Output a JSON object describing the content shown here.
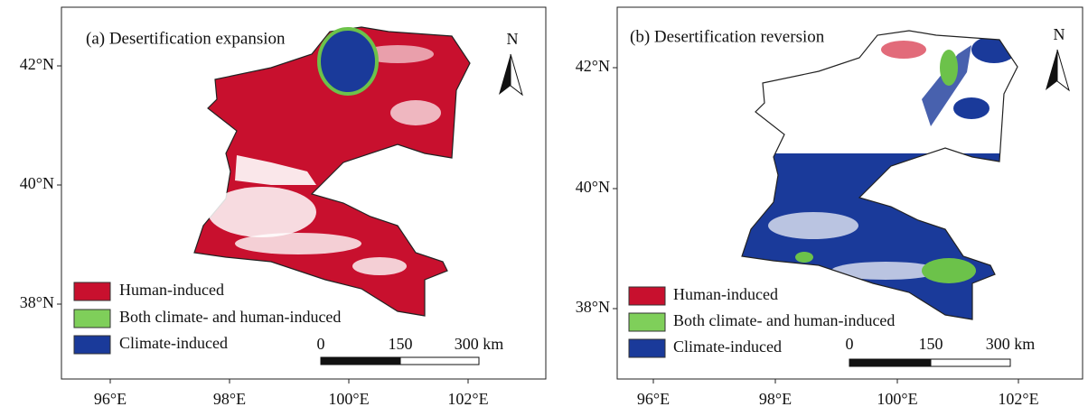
{
  "panels": [
    {
      "title": "(a) Desertification expansion",
      "lat_labels": [
        "42°N",
        "40°N",
        "38°N"
      ],
      "lon_labels": [
        "96°E",
        "98°E",
        "100°E",
        "102°E"
      ],
      "legend": [
        "Human-induced",
        "Both climate- and human-induced",
        "Climate-induced"
      ],
      "scale_labels": [
        "0",
        "150",
        "300 km"
      ],
      "north": "N"
    },
    {
      "title": "(b) Desertification reversion",
      "lat_labels": [
        "42°N",
        "40°N",
        "38°N"
      ],
      "lon_labels": [
        "96°E",
        "98°E",
        "100°E",
        "102°E"
      ],
      "legend": [
        "Human-induced",
        "Both climate- and human-induced",
        "Climate-induced"
      ],
      "scale_labels": [
        "0",
        "150",
        "300 km"
      ],
      "north": "N"
    }
  ]
}
